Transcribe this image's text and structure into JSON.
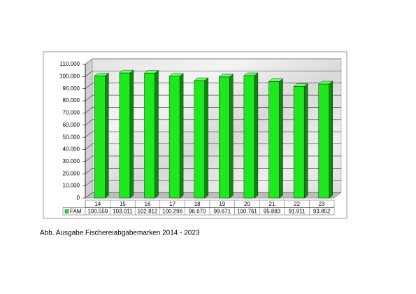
{
  "chart_data": {
    "type": "bar3d",
    "categories": [
      "14",
      "15",
      "16",
      "17",
      "18",
      "19",
      "20",
      "21",
      "22",
      "23"
    ],
    "series": [
      {
        "name": "FAM",
        "color": "#1ee81e",
        "values": [
          100559,
          103011,
          102812,
          100296,
          96670,
          99671,
          100761,
          95883,
          91911,
          93852
        ],
        "value_labels": [
          "100.559",
          "103.011",
          "102.812",
          "100.296",
          "96.670",
          "99.671",
          "100.761",
          "95.883",
          "91.911",
          "93.852"
        ]
      }
    ],
    "ylim": [
      0,
      110000
    ],
    "yticks": [
      0,
      {
        "value": 10000,
        "label": "10.000"
      },
      {
        "value": 20000,
        "label": "20.000"
      },
      {
        "value": 30000,
        "label": "30.000"
      },
      {
        "value": 40000,
        "label": "40.000"
      },
      {
        "value": 50000,
        "label": "50.000"
      },
      {
        "value": 60000,
        "label": "60.000"
      },
      {
        "value": 70000,
        "label": "70.000"
      },
      {
        "value": 80000,
        "label": "80.000"
      },
      {
        "value": 90000,
        "label": "90.000"
      },
      {
        "value": 100000,
        "label": "100.000"
      },
      {
        "value": 110000,
        "label": "110.000"
      }
    ],
    "grid": true,
    "caption": "Abb. Ausgabe Fischereiabgabemarken 2014 - 2023"
  }
}
